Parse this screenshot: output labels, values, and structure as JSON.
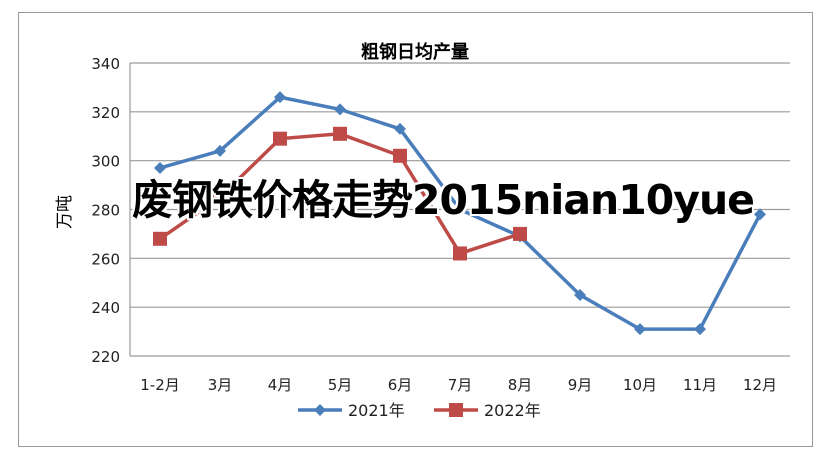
{
  "chart_data": {
    "type": "line",
    "title": "粗钢日均产量",
    "xlabel": "",
    "ylabel": "万吨",
    "ylim": [
      220,
      340
    ],
    "yticks": [
      220,
      240,
      260,
      280,
      300,
      320,
      340
    ],
    "grid": true,
    "legend": "bottom",
    "categories": [
      "1-2月",
      "3月",
      "4月",
      "5月",
      "6月",
      "7月",
      "8月",
      "9月",
      "10月",
      "11月",
      "12月"
    ],
    "series": [
      {
        "name": "2021年",
        "color": "#4a7ebb",
        "marker": "diamond",
        "values": [
          297,
          304,
          326,
          321,
          313,
          280,
          269,
          245,
          231,
          231,
          278
        ]
      },
      {
        "name": "2022年",
        "color": "#be4b48",
        "marker": "square",
        "values": [
          268,
          285,
          309,
          311,
          302,
          262,
          270,
          null,
          null,
          null,
          null
        ]
      }
    ]
  },
  "overlay_text": "废钢铁价格走势2015nian10yue"
}
